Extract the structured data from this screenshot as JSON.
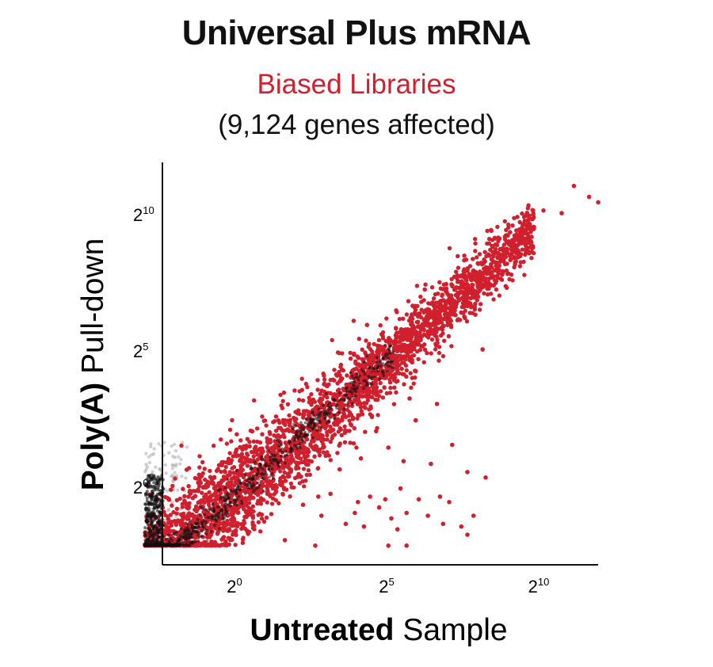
{
  "chart_data": {
    "type": "scatter",
    "title": "Universal Plus mRNA",
    "subtitle": "Biased Libraries",
    "subtitle_color": "#d0202e",
    "subtitle2": "(9,124 genes affected)",
    "xlabel": {
      "bold": "Untreated",
      "rest": " Sample"
    },
    "ylabel": {
      "bold": "Poly(A)",
      "rest": " Pull-down"
    },
    "log_base": 2,
    "xlim": [
      -3.8,
      13.5
    ],
    "ylim": [
      -3.5,
      11.5
    ],
    "x_ticks": [
      {
        "value": 0,
        "base": "2",
        "exp": "0"
      },
      {
        "value": 5,
        "base": "2",
        "exp": "5"
      },
      {
        "value": 10,
        "base": "2",
        "exp": "10"
      }
    ],
    "y_ticks": [
      {
        "value": 0,
        "base": "2",
        "exp": "0"
      },
      {
        "value": 5,
        "base": "2",
        "exp": "5"
      },
      {
        "value": 10,
        "base": "2",
        "exp": "10"
      }
    ],
    "grid": false,
    "series": [
      {
        "color": "#d0202e",
        "role": "biased genes (affected)"
      },
      {
        "color": "#111111",
        "role": "unbiased genes"
      }
    ],
    "biased_color": "#d0202e",
    "unbiased_color": "#111111",
    "band": {
      "x_start": -3.1,
      "x_end": 9.7,
      "y_min": -2.0
    },
    "outliers": [
      [
        11.0,
        11.2
      ],
      [
        11.5,
        10.8
      ],
      [
        11.8,
        10.6
      ],
      [
        10.6,
        10.2
      ],
      [
        10.0,
        10.3
      ],
      [
        9.2,
        9.6
      ],
      [
        8.9,
        9.5
      ],
      [
        9.6,
        9.0
      ],
      [
        8.3,
        8.5
      ],
      [
        7.5,
        8.1
      ],
      [
        6.8,
        7.6
      ],
      [
        8.0,
        8.0
      ],
      [
        6.1,
        7.4
      ],
      [
        5.7,
        6.8
      ],
      [
        4.2,
        6.1
      ],
      [
        5.8,
        6.5
      ],
      [
        5.8,
        4.4
      ],
      [
        7.4,
        6.4
      ],
      [
        8.0,
        5.2
      ],
      [
        5.1,
        3.8
      ],
      [
        5.6,
        3.4
      ],
      [
        5.8,
        2.6
      ],
      [
        6.5,
        3.2
      ],
      [
        4.4,
        4.3
      ],
      [
        4.0,
        1.2
      ],
      [
        4.5,
        2.2
      ],
      [
        4.9,
        1.6
      ],
      [
        5.4,
        1.1
      ],
      [
        5.3,
        0.1
      ],
      [
        6.3,
        1.0
      ],
      [
        7.0,
        1.7
      ],
      [
        7.5,
        0.7
      ],
      [
        8.1,
        0.5
      ],
      [
        3.3,
        0.8
      ],
      [
        3.0,
        -0.1
      ],
      [
        4.3,
        -0.2
      ],
      [
        4.8,
        -0.3
      ],
      [
        3.8,
        -0.8
      ],
      [
        4.6,
        -0.6
      ],
      [
        5.5,
        -0.8
      ],
      [
        6.2,
        -0.9
      ],
      [
        6.7,
        -1.2
      ],
      [
        7.3,
        -1.3
      ],
      [
        7.7,
        -0.9
      ],
      [
        6.9,
        -0.4
      ],
      [
        6.6,
        -0.2
      ],
      [
        5.9,
        -0.3
      ],
      [
        2.6,
        -0.2
      ],
      [
        2.7,
        -0.9
      ],
      [
        3.5,
        -1.2
      ],
      [
        4.1,
        -1.3
      ],
      [
        5.0,
        -1.0
      ],
      [
        5.2,
        -1.4
      ],
      [
        2.5,
        -2.0
      ],
      [
        4.9,
        -2.0
      ],
      [
        1.5,
        -1.8
      ],
      [
        7.5,
        -1.6
      ],
      [
        3.9,
        -0.4
      ],
      [
        5.5,
        -2.0
      ],
      [
        2.1,
        -0.5
      ]
    ]
  }
}
